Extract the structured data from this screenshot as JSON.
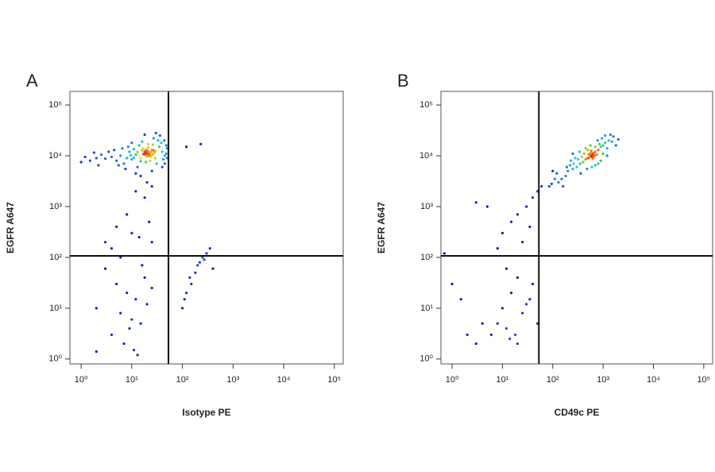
{
  "chart_data": [
    {
      "type": "scatter",
      "label": "A",
      "xlabel": "Isotype PE",
      "ylabel": "EGFR A647",
      "log_x": true,
      "log_y": true,
      "xlim": [
        0.6,
        150000
      ],
      "ylim": [
        0.8,
        185000
      ],
      "xticks": [
        {
          "value": 1,
          "label": "10⁰"
        },
        {
          "value": 10,
          "label": "10¹"
        },
        {
          "value": 100,
          "label": "10²"
        },
        {
          "value": 1000,
          "label": "10³"
        },
        {
          "value": 10000,
          "label": "10⁴"
        },
        {
          "value": 100000,
          "label": "10⁵"
        }
      ],
      "yticks": [
        {
          "value": 1,
          "label": "10⁰"
        },
        {
          "value": 10,
          "label": "10¹"
        },
        {
          "value": 100,
          "label": "10²"
        },
        {
          "value": 1000,
          "label": "10³"
        },
        {
          "value": 10000,
          "label": "10⁴"
        },
        {
          "value": 100000,
          "label": "10⁵"
        }
      ],
      "gates": {
        "x": 53,
        "y": 107
      },
      "colors": [
        "#1a1aa8",
        "#1e6fe0",
        "#20c8e0",
        "#30d040",
        "#e8e020",
        "#e02010"
      ],
      "x": [
        20,
        18,
        22,
        25,
        15,
        30,
        12,
        17,
        24,
        28,
        10,
        8,
        6,
        5,
        4,
        3,
        2.5,
        2,
        1.5,
        1.2,
        35,
        40,
        45,
        50,
        38,
        33,
        27,
        14,
        11,
        9,
        7,
        5.5,
        13,
        19,
        23,
        31,
        42,
        50,
        48,
        36,
        16,
        21,
        26,
        29,
        19,
        22,
        17,
        20,
        24,
        26,
        3.5,
        4.5,
        6.5,
        8.5,
        1.8,
        1,
        2.2,
        7.5,
        12,
        25,
        40,
        48,
        45,
        44,
        30,
        18,
        10,
        15,
        21,
        23,
        19,
        21,
        18,
        20,
        22,
        16,
        27,
        13,
        9.5,
        11,
        15,
        20,
        25,
        12,
        18,
        8,
        22,
        10,
        5,
        14,
        25,
        4,
        3,
        5,
        8,
        12,
        2,
        6,
        10,
        15,
        20,
        25,
        4,
        7,
        11,
        13,
        2,
        9,
        18,
        16,
        6,
        3,
        120,
        230,
        100,
        120,
        150,
        180,
        200,
        250,
        300,
        350,
        220,
        400,
        140,
        110,
        270
      ],
      "y": [
        11000,
        12000,
        10000,
        13000,
        9000,
        12500,
        10500,
        14000,
        9500,
        11500,
        8500,
        9000,
        10000,
        8000,
        9500,
        8800,
        10500,
        9000,
        8000,
        9500,
        15000,
        12000,
        10000,
        14000,
        18000,
        20000,
        22000,
        16000,
        13500,
        12000,
        7000,
        6500,
        6000,
        7500,
        8000,
        7000,
        8500,
        9000,
        16000,
        25000,
        19000,
        17000,
        16500,
        9000,
        13000,
        12000,
        10800,
        9800,
        11800,
        10600,
        12000,
        13000,
        14000,
        15000,
        11500,
        7500,
        6500,
        5500,
        4500,
        5000,
        6000,
        11000,
        7000,
        20000,
        28000,
        26000,
        18000,
        7800,
        14500,
        10400,
        11200,
        10900,
        10500,
        12500,
        11500,
        12800,
        12800,
        11800,
        10200,
        9200,
        4000,
        3000,
        2500,
        2000,
        1500,
        700,
        500,
        300,
        400,
        250,
        200,
        150,
        60,
        30,
        20,
        15,
        10,
        8,
        6,
        5,
        12,
        25,
        3,
        2,
        1.5,
        1.2,
        1.4,
        4,
        40,
        70,
        100,
        200,
        15000,
        17000,
        10,
        20,
        30,
        50,
        70,
        100,
        120,
        150,
        80,
        60,
        40,
        15,
        90
      ]
    },
    {
      "type": "scatter",
      "label": "B",
      "xlabel": "CD49c PE",
      "ylabel": "EGFR A647",
      "log_x": true,
      "log_y": true,
      "xlim": [
        0.6,
        150000
      ],
      "ylim": [
        0.8,
        185000
      ],
      "xticks": [
        {
          "value": 1,
          "label": "10⁰"
        },
        {
          "value": 10,
          "label": "10¹"
        },
        {
          "value": 100,
          "label": "10²"
        },
        {
          "value": 1000,
          "label": "10³"
        },
        {
          "value": 10000,
          "label": "10⁴"
        },
        {
          "value": 100000,
          "label": "10⁵"
        }
      ],
      "yticks": [
        {
          "value": 1,
          "label": "10⁰"
        },
        {
          "value": 10,
          "label": "10¹"
        },
        {
          "value": 100,
          "label": "10²"
        },
        {
          "value": 1000,
          "label": "10³"
        },
        {
          "value": 10000,
          "label": "10⁴"
        },
        {
          "value": 100000,
          "label": "10⁵"
        }
      ],
      "gates": {
        "x": 53,
        "y": 107
      },
      "colors": [
        "#1a1aa8",
        "#1e6fe0",
        "#20c8e0",
        "#30d040",
        "#e8e020",
        "#e02010"
      ],
      "x": [
        600,
        550,
        650,
        700,
        500,
        800,
        450,
        750,
        580,
        620,
        400,
        350,
        300,
        250,
        200,
        180,
        150,
        900,
        1000,
        1100,
        1200,
        1300,
        950,
        850,
        700,
        500,
        420,
        380,
        320,
        280,
        260,
        220,
        1000,
        1200,
        900,
        800,
        700,
        600,
        480,
        360,
        1500,
        1600,
        1400,
        1100,
        780,
        560,
        450,
        340,
        230,
        190,
        610,
        590,
        630,
        570,
        660,
        540,
        680,
        520,
        640,
        600,
        130,
        110,
        95,
        85,
        120,
        160,
        100,
        2000,
        1800,
        250,
        60,
        50,
        40,
        30,
        20,
        15,
        10,
        35,
        25,
        8,
        5,
        3,
        12,
        20,
        15,
        10,
        8,
        12,
        18,
        25,
        30,
        40,
        6,
        4,
        3,
        2,
        1.5,
        1,
        0.7,
        20,
        14,
        50,
        35
      ],
      "y": [
        10000,
        11000,
        9500,
        12000,
        9000,
        13000,
        8500,
        10500,
        12500,
        8800,
        7500,
        7000,
        6000,
        5500,
        5000,
        4000,
        3500,
        15000,
        16000,
        18000,
        14000,
        20000,
        22000,
        17000,
        15000,
        13000,
        11000,
        9500,
        8500,
        9000,
        7000,
        6500,
        11000,
        10000,
        8000,
        7000,
        6500,
        6000,
        5500,
        4500,
        19000,
        24000,
        26000,
        25000,
        20000,
        16000,
        14000,
        12000,
        8000,
        6000,
        10400,
        9700,
        10800,
        10200,
        11200,
        9300,
        10000,
        10600,
        9200,
        11600,
        3000,
        3500,
        2800,
        2500,
        4500,
        2500,
        5000,
        21000,
        16000,
        11000,
        2500,
        2000,
        1500,
        1000,
        700,
        500,
        300,
        400,
        200,
        150,
        1000,
        1200,
        60,
        40,
        20,
        10,
        5,
        4,
        3,
        8,
        12,
        30,
        3,
        5,
        2,
        3,
        15,
        30,
        120,
        2,
        2.5,
        5,
        15
      ]
    }
  ]
}
